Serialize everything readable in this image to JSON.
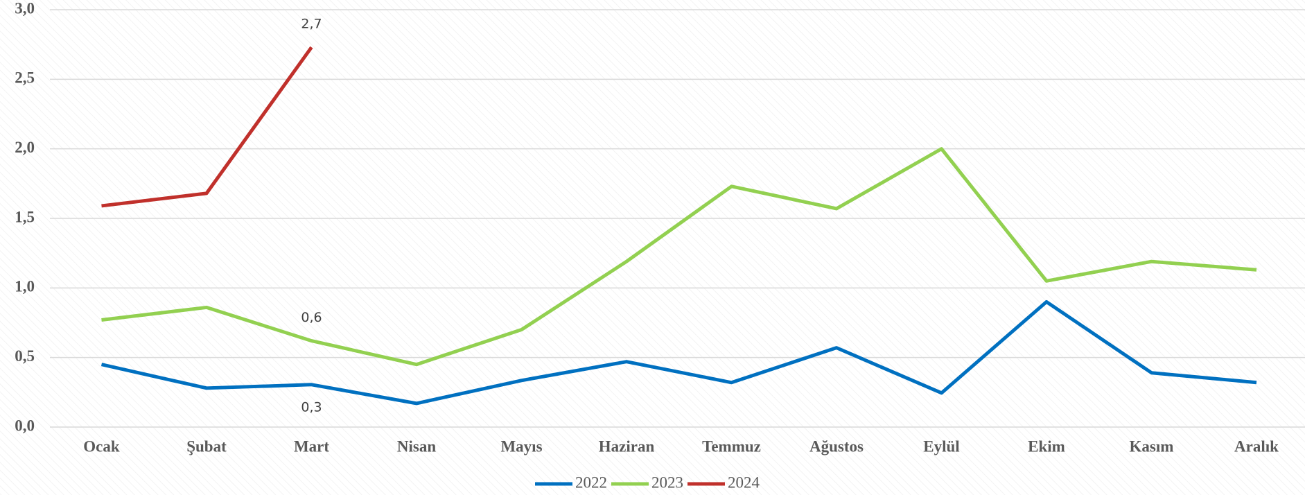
{
  "chart_data": {
    "type": "line",
    "categories": [
      "Ocak",
      "Şubat",
      "Mart",
      "Nisan",
      "Mayıs",
      "Haziran",
      "Temmuz",
      "Ağustos",
      "Eylül",
      "Ekim",
      "Kasım",
      "Aralık"
    ],
    "series": [
      {
        "name": "2022",
        "color": "#0070c0",
        "values": [
          0.45,
          0.28,
          0.305,
          0.17,
          0.335,
          0.47,
          0.32,
          0.57,
          0.245,
          0.9,
          0.39,
          0.32
        ],
        "value_labels": [
          null,
          null,
          "0,3",
          null,
          null,
          null,
          null,
          null,
          null,
          null,
          null,
          null
        ]
      },
      {
        "name": "2023",
        "color": "#92d050",
        "values": [
          0.77,
          0.86,
          0.62,
          0.45,
          0.7,
          1.19,
          1.73,
          1.57,
          2.0,
          1.05,
          1.19,
          1.13
        ],
        "value_labels": [
          null,
          null,
          "0,6",
          null,
          null,
          null,
          null,
          null,
          null,
          null,
          null,
          null
        ]
      },
      {
        "name": "2024",
        "color": "#c0302b",
        "values": [
          1.59,
          1.68,
          2.73,
          null,
          null,
          null,
          null,
          null,
          null,
          null,
          null,
          null
        ],
        "value_labels": [
          null,
          null,
          "2,7",
          null,
          null,
          null,
          null,
          null,
          null,
          null,
          null,
          null
        ]
      }
    ],
    "ylim": [
      0,
      3
    ],
    "yticks": [
      {
        "value": 0,
        "label": "0,0"
      },
      {
        "value": 0.5,
        "label": "0,5"
      },
      {
        "value": 1,
        "label": "1,0"
      },
      {
        "value": 1.5,
        "label": "1,5"
      },
      {
        "value": 2,
        "label": "2,0"
      },
      {
        "value": 2.5,
        "label": "2,5"
      },
      {
        "value": 3,
        "label": "3,0"
      }
    ],
    "grid": true,
    "legend": "bottom"
  }
}
